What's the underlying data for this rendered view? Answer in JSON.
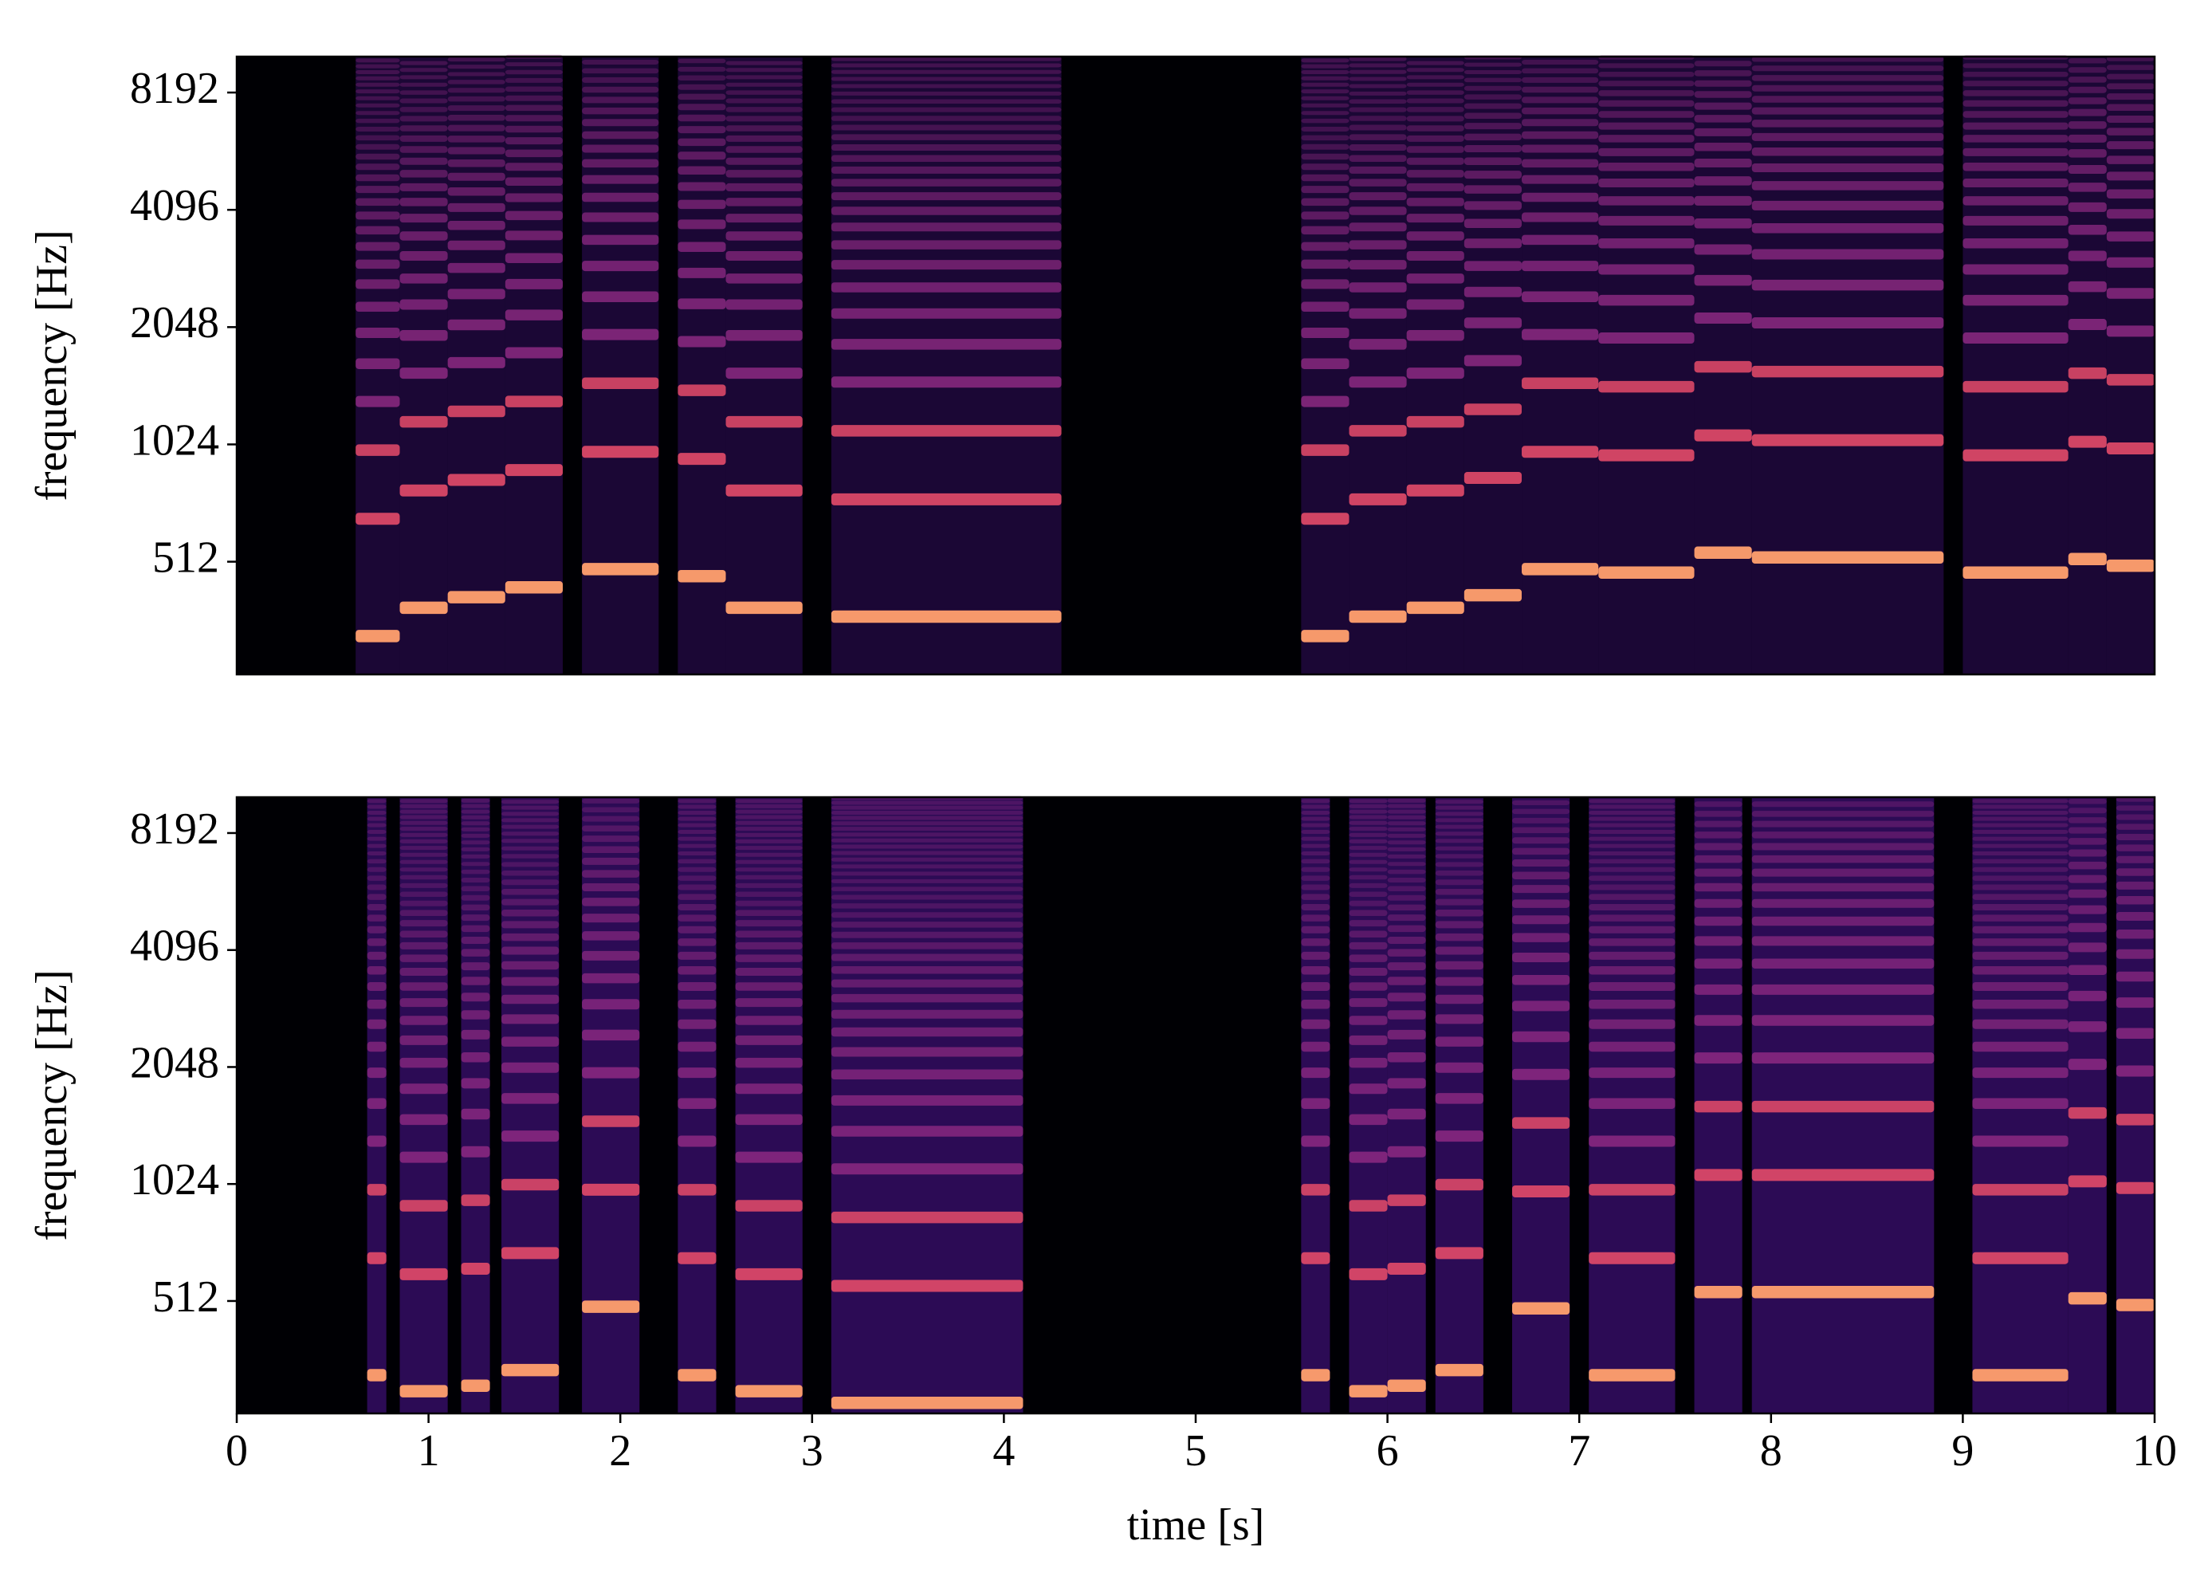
{
  "chart_data": [
    {
      "type": "spectrogram",
      "ylabel": "frequency [Hz]",
      "xlim": [
        0,
        10
      ],
      "ylim": [
        263,
        10130
      ],
      "log_y": true,
      "yticks": [
        512,
        1024,
        2048,
        4096,
        8192
      ],
      "colormap": [
        "#000004",
        "#3b0f70",
        "#8c2981",
        "#de4968",
        "#fe9f6d",
        "#fcfdbf"
      ],
      "notes": {
        "start": [
          0.62,
          0.85,
          1.1,
          1.4,
          1.8,
          2.3,
          2.55,
          3.1,
          5.55,
          5.8,
          6.1,
          6.4,
          6.7,
          7.1,
          7.6,
          7.9,
          9.0,
          9.55,
          9.75
        ],
        "end": [
          0.85,
          1.1,
          1.4,
          1.7,
          2.2,
          2.55,
          2.95,
          4.3,
          5.8,
          6.1,
          6.4,
          6.7,
          7.1,
          7.6,
          7.9,
          8.9,
          9.55,
          9.75,
          10.0
        ],
        "f0": [
          330,
          390,
          415,
          440,
          490,
          470,
          390,
          370,
          330,
          370,
          390,
          420,
          490,
          480,
          540,
          525,
          480,
          520,
          500
        ]
      }
    },
    {
      "type": "spectrogram",
      "xlabel": "time [s]",
      "ylabel": "frequency [Hz]",
      "xlim": [
        0,
        10
      ],
      "ylim": [
        263,
        10130
      ],
      "log_y": true,
      "xticks": [
        0,
        1,
        2,
        3,
        4,
        5,
        6,
        7,
        8,
        9,
        10
      ],
      "yticks": [
        512,
        1024,
        2048,
        4096,
        8192
      ],
      "colormap": [
        "#000004",
        "#3b0f70",
        "#8c2981",
        "#de4968",
        "#fe9f6d",
        "#fcfdbf"
      ],
      "notes": {
        "start": [
          0.68,
          0.85,
          1.17,
          1.38,
          1.8,
          2.3,
          2.6,
          3.1,
          5.55,
          5.8,
          6.0,
          6.25,
          6.65,
          7.05,
          7.6,
          7.9,
          9.05,
          9.55,
          9.8
        ],
        "end": [
          0.78,
          1.1,
          1.32,
          1.68,
          2.1,
          2.5,
          2.95,
          4.1,
          5.7,
          6.0,
          6.2,
          6.5,
          6.95,
          7.5,
          7.85,
          8.85,
          9.55,
          9.75,
          10.0
        ],
        "f0": [
          330,
          300,
          310,
          340,
          495,
          330,
          300,
          280,
          330,
          300,
          310,
          340,
          490,
          330,
          540,
          540,
          330,
          520,
          500
        ]
      }
    }
  ]
}
